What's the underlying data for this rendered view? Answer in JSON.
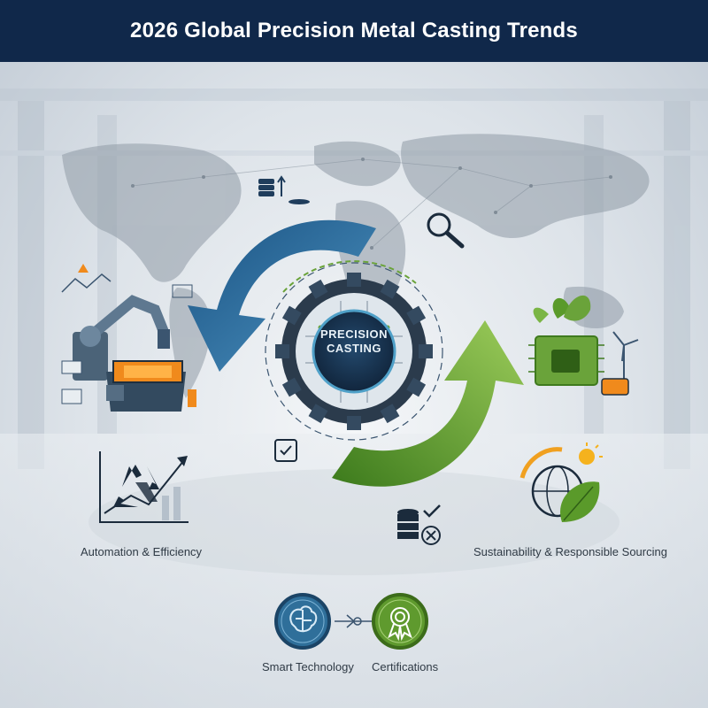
{
  "header": {
    "title": "2026 Global Precision Metal Casting Trends"
  },
  "center": {
    "line1": "PRECISION",
    "line2": "CASTING"
  },
  "labels": {
    "left": "Automation & Efficiency",
    "right": "Sustainability & Responsible Sourcing",
    "bottom_left": "Smart Technology",
    "bottom_right": "Certifications"
  },
  "colors": {
    "header_bg": "#10284a",
    "blue_arrow": "#2f6f9a",
    "green_arrow": "#5f9a2e",
    "center_ring": "#1f3d5c",
    "accent_orange": "#f08a1c"
  },
  "icons": [
    "world-map",
    "robot-arm-icon",
    "recycle-icon",
    "magnifier-icon",
    "circuit-leaf-icon",
    "wind-turbine-icon",
    "globe-leaf-icon",
    "brain-icon",
    "certificate-badge-icon",
    "database-check-icon",
    "checklist-icon",
    "stacked-coins-icon"
  ]
}
